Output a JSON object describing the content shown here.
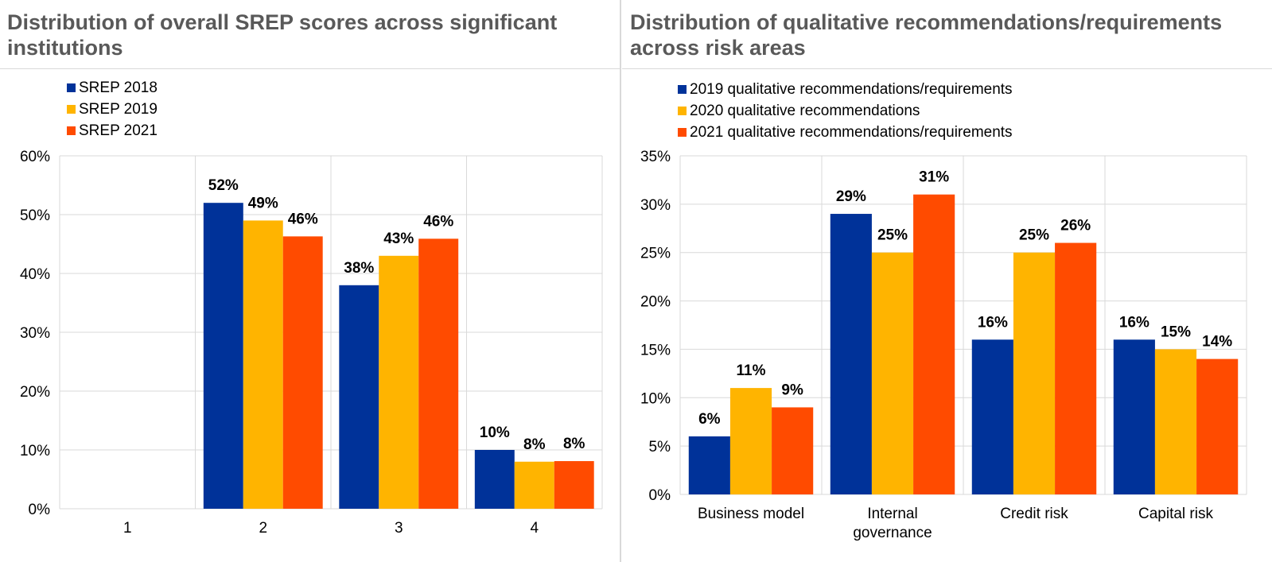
{
  "colors": {
    "series_blue": "#003299",
    "series_yellow": "#ffb400",
    "series_orange": "#ff4b00",
    "title_gray": "#595959",
    "grid": "#d9d9d9"
  },
  "chart_data": [
    {
      "type": "bar",
      "title": "Distribution of overall SREP scores across significant institutions",
      "categories": [
        "1",
        "2",
        "3",
        "4"
      ],
      "series": [
        {
          "name": "SREP 2018",
          "values": [
            null,
            52,
            38,
            10
          ],
          "labels": [
            "",
            "52%",
            "38%",
            "10%"
          ]
        },
        {
          "name": "SREP 2019",
          "values": [
            null,
            49,
            43,
            8
          ],
          "labels": [
            "",
            "49%",
            "43%",
            "8%"
          ]
        },
        {
          "name": "SREP 2021",
          "values": [
            null,
            46.3,
            45.9,
            8.1
          ],
          "labels": [
            "",
            "46%",
            "46%",
            "8%"
          ]
        }
      ],
      "yticks": [
        "0%",
        "10%",
        "20%",
        "30%",
        "40%",
        "50%",
        "60%"
      ],
      "ylim": [
        0,
        60
      ],
      "ystep": 10,
      "grid": true,
      "legend_position": "top-left"
    },
    {
      "type": "bar",
      "title": "Distribution of qualitative recommendations/requirements across risk areas",
      "categories": [
        [
          "Business model"
        ],
        [
          "Internal",
          "governance"
        ],
        [
          "Credit risk"
        ],
        [
          "Capital risk"
        ]
      ],
      "series": [
        {
          "name": "2019 qualitative recommendations/requirements",
          "values": [
            6,
            29,
            16,
            16
          ],
          "labels": [
            "6%",
            "29%",
            "16%",
            "16%"
          ]
        },
        {
          "name": "2020 qualitative recommendations",
          "values": [
            11,
            25,
            25,
            15
          ],
          "labels": [
            "11%",
            "25%",
            "25%",
            "15%"
          ]
        },
        {
          "name": "2021 qualitative recommendations/requirements",
          "values": [
            9,
            31,
            26,
            14
          ],
          "labels": [
            "9%",
            "31%",
            "26%",
            "14%"
          ]
        }
      ],
      "yticks": [
        "0%",
        "5%",
        "10%",
        "15%",
        "20%",
        "25%",
        "30%",
        "35%"
      ],
      "ylim": [
        0,
        35
      ],
      "ystep": 5,
      "grid": true,
      "legend_position": "top-left"
    }
  ]
}
